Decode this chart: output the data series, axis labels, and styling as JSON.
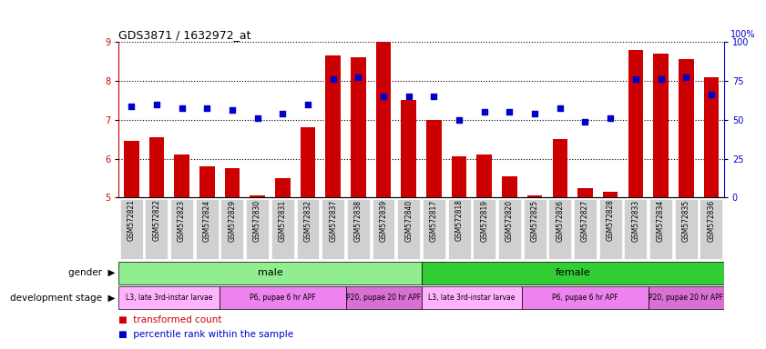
{
  "title": "GDS3871 / 1632972_at",
  "samples": [
    "GSM572821",
    "GSM572822",
    "GSM572823",
    "GSM572824",
    "GSM572829",
    "GSM572830",
    "GSM572831",
    "GSM572832",
    "GSM572837",
    "GSM572838",
    "GSM572839",
    "GSM572840",
    "GSM572817",
    "GSM572818",
    "GSM572819",
    "GSM572820",
    "GSM572825",
    "GSM572826",
    "GSM572827",
    "GSM572828",
    "GSM572833",
    "GSM572834",
    "GSM572835",
    "GSM572836"
  ],
  "bar_values": [
    6.45,
    6.55,
    6.1,
    5.8,
    5.75,
    5.05,
    5.5,
    6.8,
    8.65,
    8.6,
    9.0,
    7.5,
    7.0,
    6.05,
    6.1,
    5.55,
    5.05,
    6.5,
    5.25,
    5.15,
    8.8,
    8.7,
    8.55,
    8.1
  ],
  "scatter_values": [
    7.35,
    7.4,
    7.3,
    7.3,
    7.25,
    7.05,
    7.15,
    7.4,
    8.05,
    8.1,
    7.6,
    7.6,
    7.6,
    7.0,
    7.2,
    7.2,
    7.15,
    7.3,
    6.95,
    7.05,
    8.05,
    8.05,
    8.1,
    7.65
  ],
  "ylim_left": [
    5.0,
    9.0
  ],
  "ylim_right": [
    0,
    100
  ],
  "yticks_left": [
    5,
    6,
    7,
    8,
    9
  ],
  "yticks_right": [
    0,
    25,
    50,
    75,
    100
  ],
  "bar_color": "#cc0000",
  "scatter_color": "#0000cc",
  "bar_bottom": 5.0,
  "gender_groups": [
    {
      "label": "male",
      "start": 0,
      "end": 11,
      "color": "#90ee90"
    },
    {
      "label": "female",
      "start": 12,
      "end": 23,
      "color": "#32cd32"
    }
  ],
  "dev_stage_groups": [
    {
      "label": "L3, late 3rd-instar larvae",
      "start": 0,
      "end": 3,
      "color": "#ffb3ff"
    },
    {
      "label": "P6, pupae 6 hr APF",
      "start": 4,
      "end": 8,
      "color": "#ee82ee"
    },
    {
      "label": "P20, pupae 20 hr APF",
      "start": 9,
      "end": 11,
      "color": "#da70d6"
    },
    {
      "label": "L3, late 3rd-instar larvae",
      "start": 12,
      "end": 15,
      "color": "#ffb3ff"
    },
    {
      "label": "P6, pupae 6 hr APF",
      "start": 16,
      "end": 20,
      "color": "#ee82ee"
    },
    {
      "label": "P20, pupae 20 hr APF",
      "start": 21,
      "end": 23,
      "color": "#da70d6"
    }
  ],
  "legend_bar_label": "transformed count",
  "legend_scatter_label": "percentile rank within the sample",
  "gender_label": "gender",
  "dev_stage_label": "development stage",
  "bg_color": "#ffffff",
  "right_axis_color": "#0000cc",
  "left_axis_color": "#cc0000",
  "left_label_color": "#888888",
  "ticker_bg": "#d0d0d0"
}
